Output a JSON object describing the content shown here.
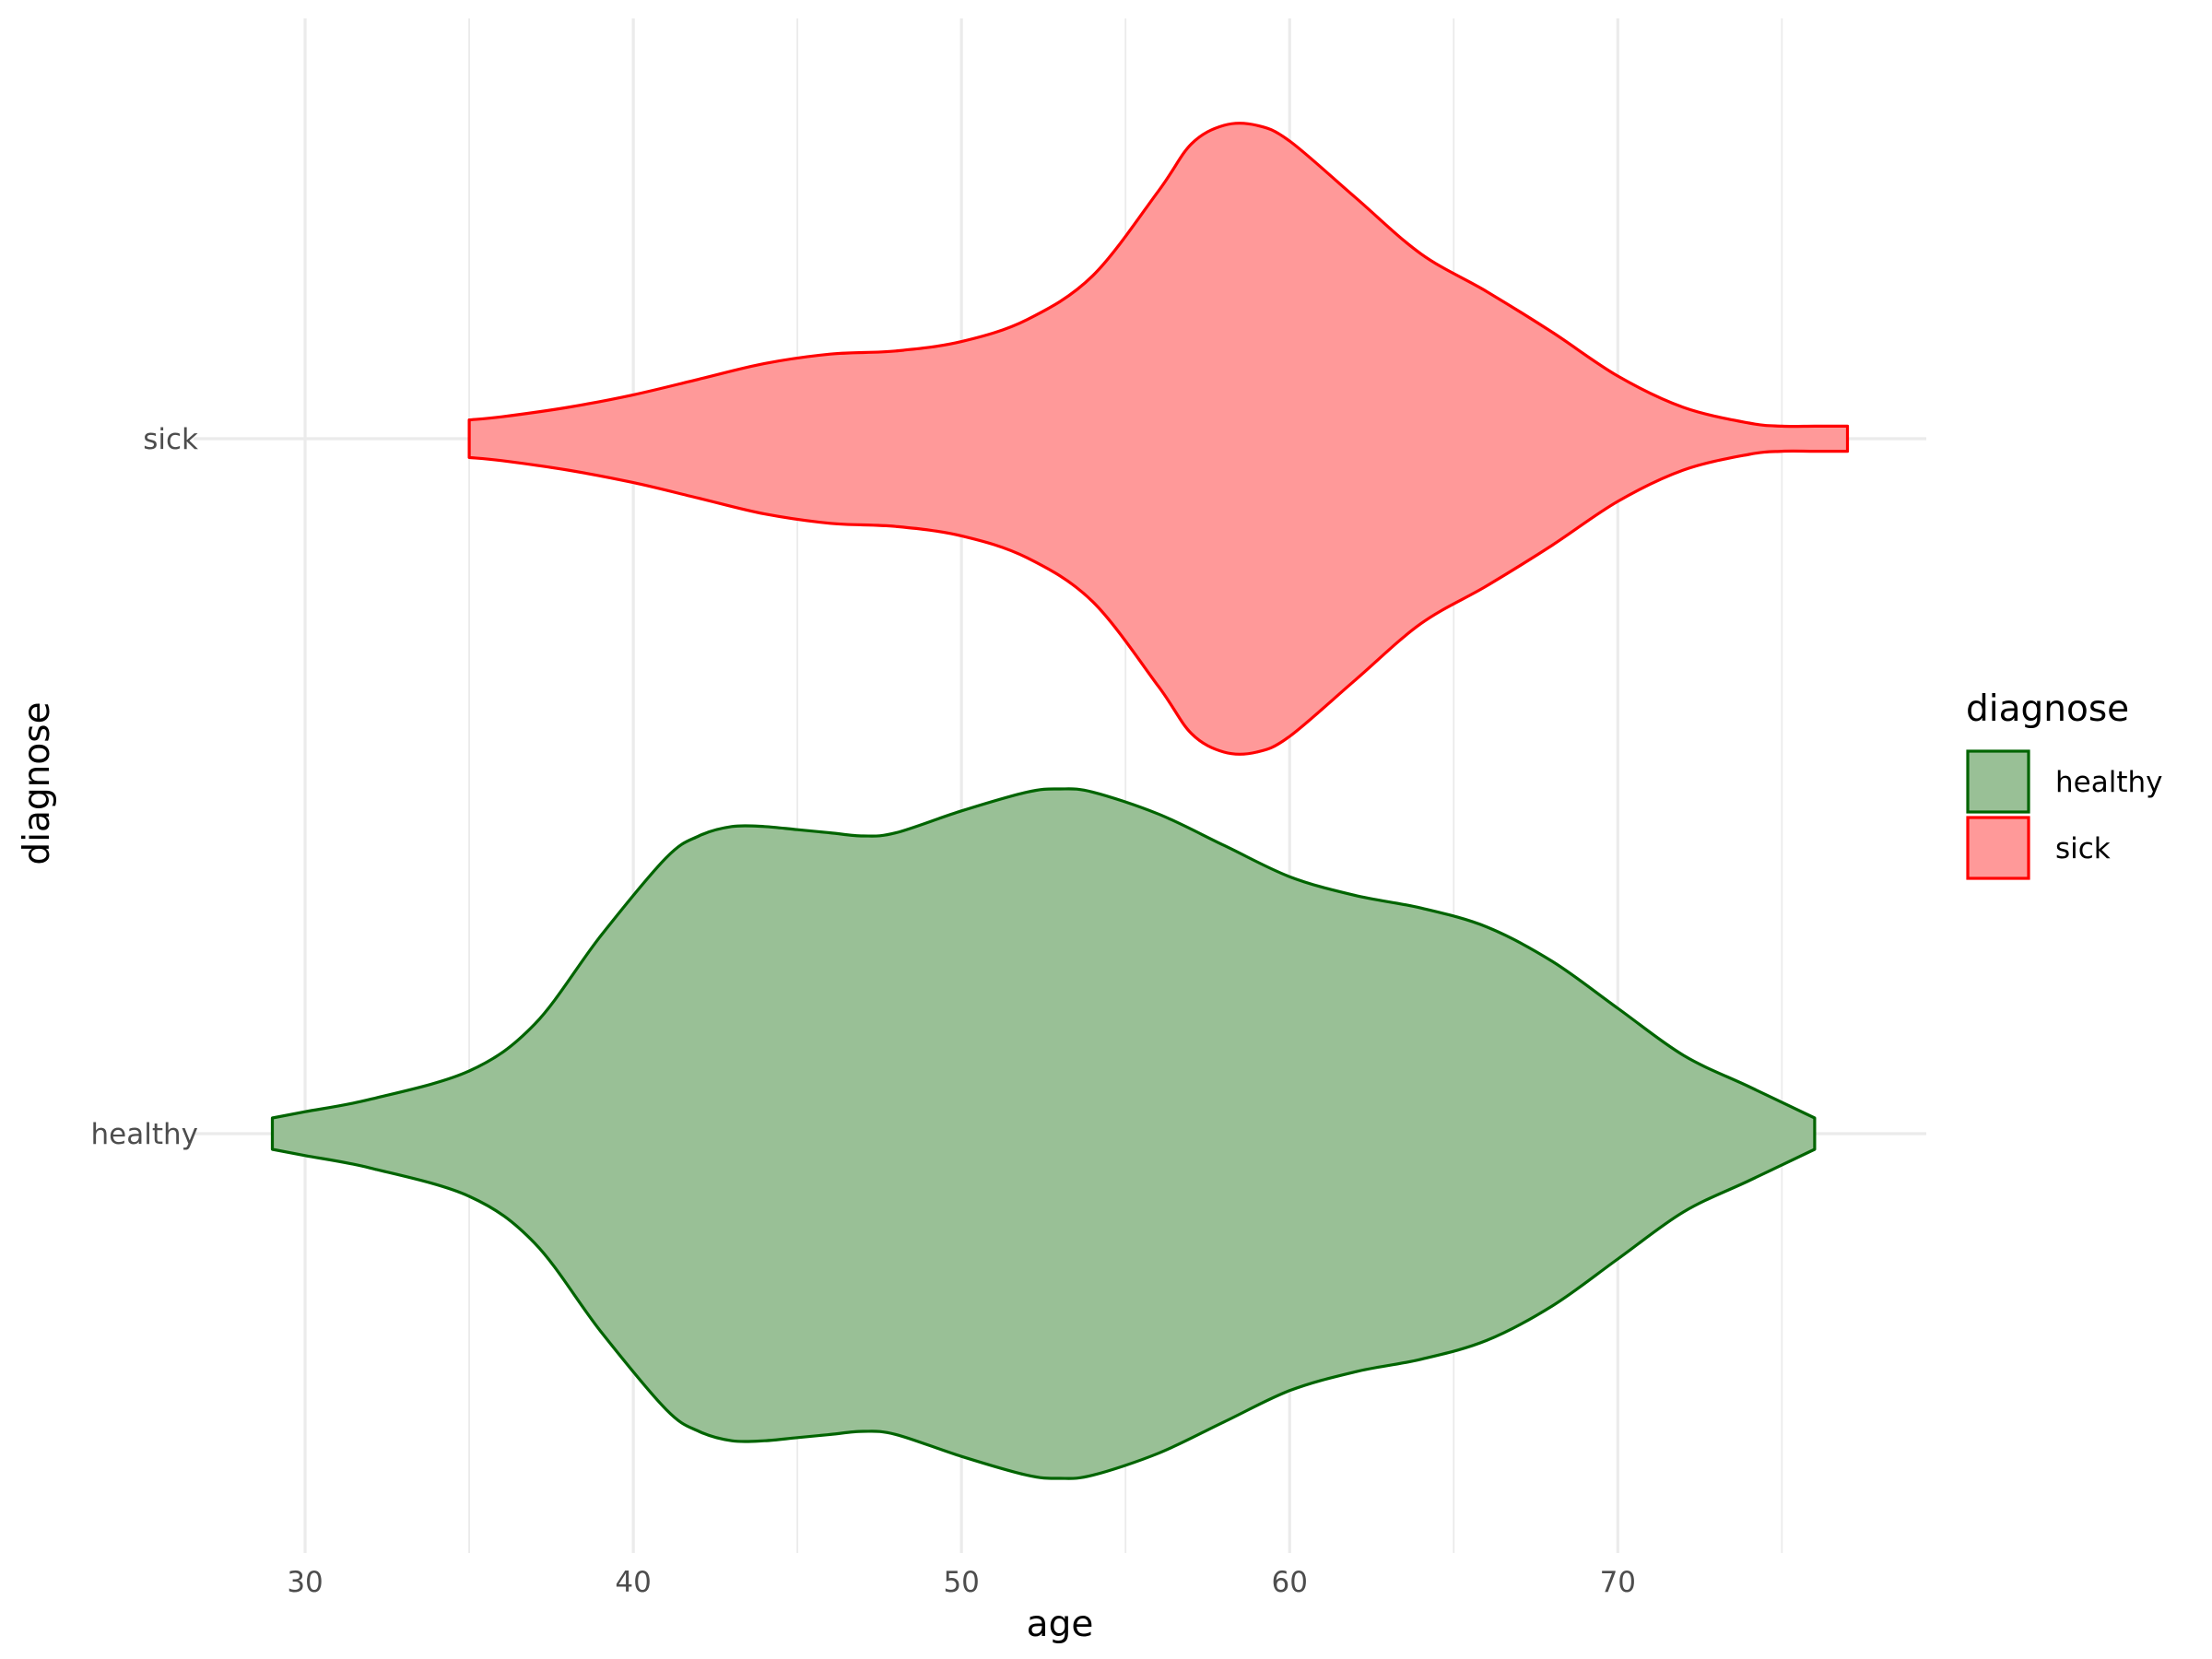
{
  "chart_data": {
    "type": "violin",
    "orientation": "horizontal",
    "xlabel": "age",
    "ylabel": "diagnose",
    "xlim": [
      26.6,
      79.4
    ],
    "x_ticks": [
      30,
      40,
      50,
      60,
      70
    ],
    "categories": [
      "healthy",
      "sick"
    ],
    "grid": "on",
    "legend": {
      "title": "diagnose",
      "placement": "right"
    },
    "series": [
      {
        "name": "healthy",
        "fill": "#99c096",
        "stroke": "#006400",
        "range": [
          29,
          76
        ],
        "density_x": [
          29,
          30,
          32,
          35,
          37,
          39,
          41,
          42,
          43,
          44,
          45,
          46,
          47,
          48,
          50,
          52,
          53,
          54,
          56,
          58,
          60,
          62,
          64,
          66,
          68,
          70,
          72,
          74,
          76
        ],
        "density_half_width": [
          0.05,
          0.07,
          0.11,
          0.2,
          0.35,
          0.63,
          0.88,
          0.95,
          0.98,
          0.98,
          0.97,
          0.96,
          0.95,
          0.96,
          1.03,
          1.09,
          1.1,
          1.09,
          1.02,
          0.92,
          0.82,
          0.76,
          0.72,
          0.66,
          0.55,
          0.4,
          0.25,
          0.15,
          0.05
        ]
      },
      {
        "name": "sick",
        "fill": "#ff9999",
        "stroke": "#ff0000",
        "range": [
          35,
          77
        ],
        "density_x": [
          35,
          36,
          38,
          40,
          42,
          44,
          46,
          48,
          50,
          52,
          54,
          56,
          57,
          58,
          59,
          60,
          62,
          64,
          66,
          68,
          70,
          72,
          74,
          75,
          76,
          77
        ],
        "density_half_width": [
          0.06,
          0.07,
          0.1,
          0.14,
          0.19,
          0.24,
          0.27,
          0.28,
          0.31,
          0.38,
          0.52,
          0.79,
          0.94,
          1.0,
          1.0,
          0.95,
          0.77,
          0.59,
          0.47,
          0.34,
          0.2,
          0.1,
          0.05,
          0.04,
          0.04,
          0.04
        ]
      }
    ]
  }
}
